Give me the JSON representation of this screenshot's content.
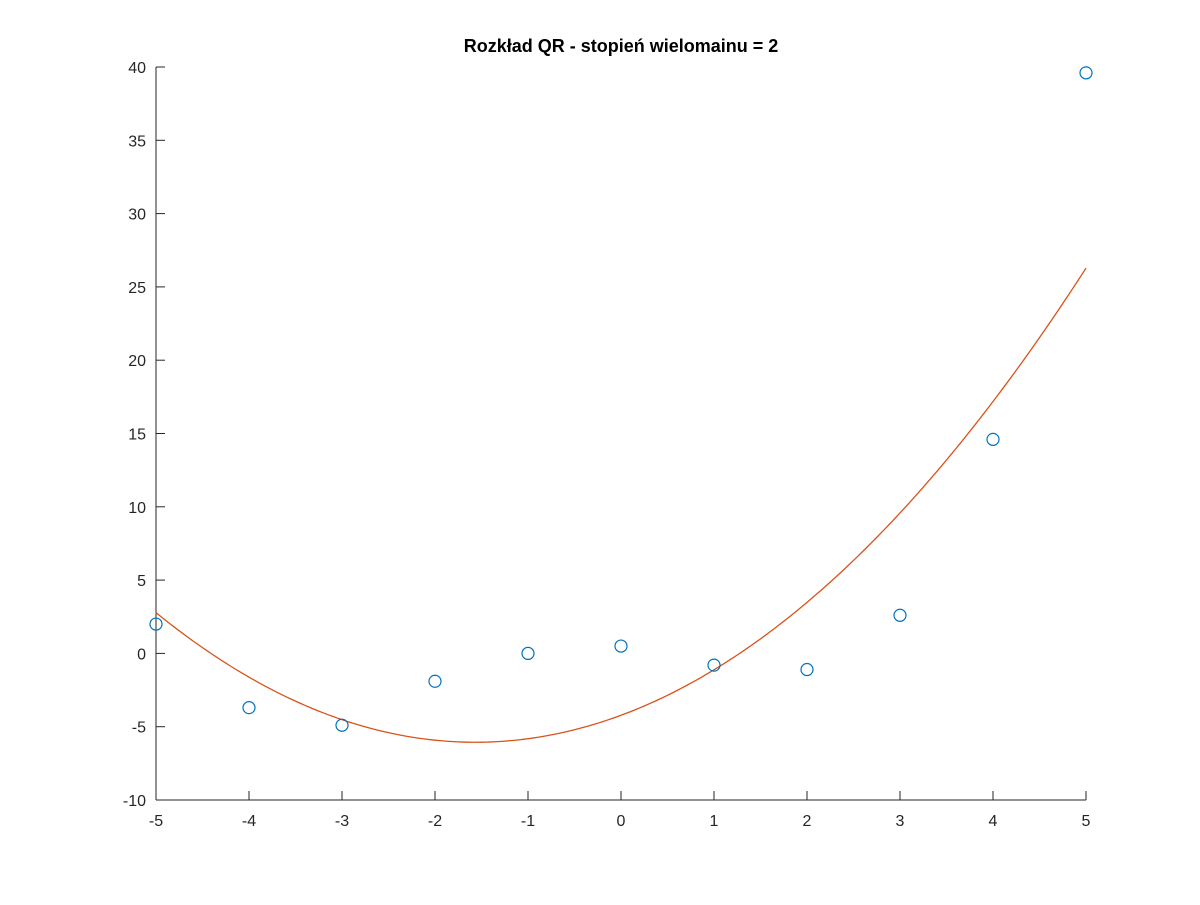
{
  "chart_data": {
    "type": "scatter",
    "title": "Rozkład QR - stopień wielomainu = 2",
    "xlabel": "",
    "ylabel": "",
    "xlim": [
      -5,
      5
    ],
    "ylim": [
      -10,
      40
    ],
    "x_ticks": [
      -5,
      -4,
      -3,
      -2,
      -1,
      0,
      1,
      2,
      3,
      4,
      5
    ],
    "y_ticks": [
      -10,
      -5,
      0,
      5,
      10,
      15,
      20,
      25,
      30,
      35,
      40
    ],
    "grid": false,
    "box": false,
    "series": [
      {
        "kind": "scatter",
        "marker": "circle-open",
        "color": "#0072BD",
        "x": [
          -5,
          -4,
          -3,
          -2,
          -1,
          0,
          1,
          2,
          3,
          4,
          5
        ],
        "y": [
          2.0,
          -3.7,
          -4.9,
          -1.9,
          0.0,
          0.5,
          -0.8,
          -1.1,
          2.6,
          14.6,
          39.6
        ]
      },
      {
        "kind": "line",
        "color": "#D95319",
        "fit": "quadratic",
        "coefficients": [
          -4.22,
          2.35,
          0.75
        ]
      }
    ]
  }
}
